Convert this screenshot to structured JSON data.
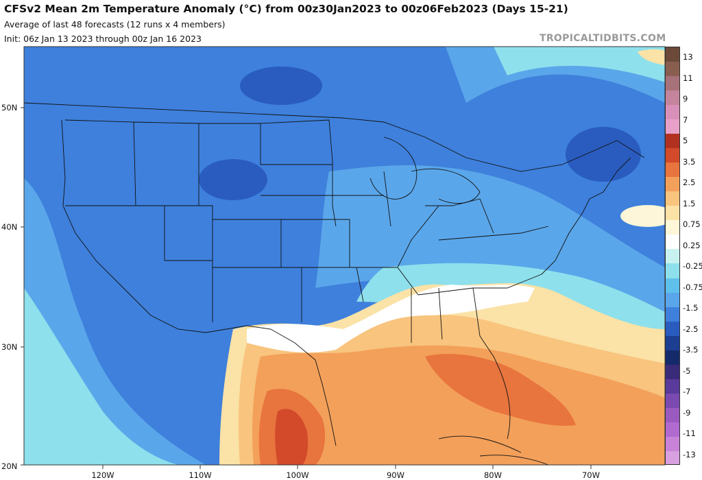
{
  "header": {
    "title": "CFSv2 Mean 2m Temperature Anomaly (°C) from 00z30Jan2023 to 00z06Feb2023 (Days 15-21)",
    "subtitle": "Average of last 48 forecasts (12 runs x 4 members)",
    "init": "Init: 06z Jan 13 2023 through 00z Jan 16 2023",
    "brand": "TROPICALTIDBITS.COM"
  },
  "axes": {
    "lat_labels": [
      "50N",
      "40N",
      "30N",
      "20N"
    ],
    "lon_labels": [
      "120W",
      "110W",
      "100W",
      "90W",
      "80W",
      "70W"
    ]
  },
  "colorbar": {
    "labels": [
      "13",
      "11",
      "9",
      "7",
      "5",
      "3.5",
      "2.5",
      "1.5",
      "0.75",
      "0.25",
      "-0.25",
      "-0.75",
      "-1.5",
      "-2.5",
      "-3.5",
      "-5",
      "-7",
      "-9",
      "-11",
      "-13"
    ],
    "colors": [
      "#6b4a3a",
      "#8a5e4e",
      "#a8727a",
      "#c4849c",
      "#d890b8",
      "#e8a0c8",
      "#b23020",
      "#d24a2a",
      "#e8743e",
      "#f3a05a",
      "#f8c47e",
      "#fbe2a6",
      "#fdf6d8",
      "#ffffff",
      "#c8f2f0",
      "#8ee0ec",
      "#60c0ec",
      "#5aa6ea",
      "#3e80dc",
      "#2a5cc0",
      "#1c3f92",
      "#142a6a",
      "#3a2a7a",
      "#5a3a9a",
      "#7a4ab0",
      "#9a5ac0",
      "#b06ad0",
      "#c882d8",
      "#d8a0e0"
    ]
  },
  "regions": {
    "tongue": "#c8f2f0",
    "neutral": "#ffffff",
    "warm_light": "#fbe2a6",
    "warm_mid": "#f8c47e",
    "warm": "#f3a05a",
    "warmer": "#e8743e",
    "hot": "#d24a2a",
    "cold_light": "#8ee0ec",
    "cold": "#60c0ec",
    "cold_mid": "#5aa6ea",
    "colder": "#3e80dc",
    "coldest": "#1c3f92",
    "ocean_cold": "#2a5cc0"
  }
}
